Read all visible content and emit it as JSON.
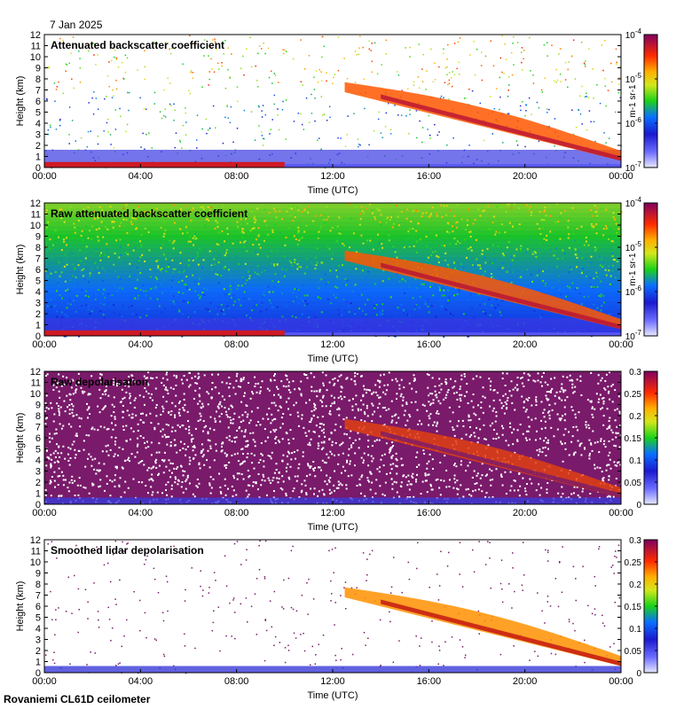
{
  "date_label": "7 Jan 2025",
  "footer_label": "Rovaniemi CL61D ceilometer",
  "chart_data": [
    {
      "type": "heatmap",
      "title": "Attenuated backscatter coefficient",
      "xlabel": "Time (UTC)",
      "ylabel": "Height (km)",
      "x_ticks": [
        "00:00",
        "04:00",
        "08:00",
        "12:00",
        "16:00",
        "20:00",
        "00:00"
      ],
      "y_ticks": [
        "0",
        "1",
        "2",
        "3",
        "4",
        "5",
        "6",
        "7",
        "8",
        "9",
        "10",
        "11",
        "12"
      ],
      "xlim_hours": [
        0,
        24
      ],
      "ylim_km": [
        0,
        12
      ],
      "colorbar": {
        "scale": "log",
        "ticks": [
          "10-7",
          "10-6",
          "10-5",
          "10-4"
        ],
        "unit": "m-1 sr-1",
        "range": [
          1e-07,
          0.0001
        ]
      }
    },
    {
      "type": "heatmap",
      "title": "Raw attenuated backscatter coefficient",
      "xlabel": "Time (UTC)",
      "ylabel": "Height (km)",
      "x_ticks": [
        "00:00",
        "04:00",
        "08:00",
        "12:00",
        "16:00",
        "20:00",
        "00:00"
      ],
      "y_ticks": [
        "0",
        "1",
        "2",
        "3",
        "4",
        "5",
        "6",
        "7",
        "8",
        "9",
        "10",
        "11",
        "12"
      ],
      "xlim_hours": [
        0,
        24
      ],
      "ylim_km": [
        0,
        12
      ],
      "colorbar": {
        "scale": "log",
        "ticks": [
          "10-7",
          "10-6",
          "10-5",
          "10-4"
        ],
        "unit": "m-1 sr-1",
        "range": [
          1e-07,
          0.0001
        ]
      }
    },
    {
      "type": "heatmap",
      "title": "Raw depolarisation",
      "xlabel": "Time (UTC)",
      "ylabel": "Height (km)",
      "x_ticks": [
        "00:00",
        "04:00",
        "08:00",
        "12:00",
        "16:00",
        "20:00",
        "00:00"
      ],
      "y_ticks": [
        "0",
        "1",
        "2",
        "3",
        "4",
        "5",
        "6",
        "7",
        "8",
        "9",
        "10",
        "11",
        "12"
      ],
      "xlim_hours": [
        0,
        24
      ],
      "ylim_km": [
        0,
        12
      ],
      "colorbar": {
        "scale": "linear",
        "ticks": [
          "0",
          "0.05",
          "0.1",
          "0.15",
          "0.2",
          "0.25",
          "0.3"
        ],
        "unit": "",
        "range": [
          0,
          0.3
        ]
      }
    },
    {
      "type": "heatmap",
      "title": "Smoothed lidar depolarisation",
      "xlabel": "Time (UTC)",
      "ylabel": "Height (km)",
      "x_ticks": [
        "00:00",
        "04:00",
        "08:00",
        "12:00",
        "16:00",
        "20:00",
        "00:00"
      ],
      "y_ticks": [
        "0",
        "1",
        "2",
        "3",
        "4",
        "5",
        "6",
        "7",
        "8",
        "9",
        "10",
        "11",
        "12"
      ],
      "xlim_hours": [
        0,
        24
      ],
      "ylim_km": [
        0,
        12
      ],
      "colorbar": {
        "scale": "linear",
        "ticks": [
          "0",
          "0.05",
          "0.1",
          "0.15",
          "0.2",
          "0.25",
          "0.3"
        ],
        "unit": "",
        "range": [
          0,
          0.3
        ]
      }
    }
  ]
}
